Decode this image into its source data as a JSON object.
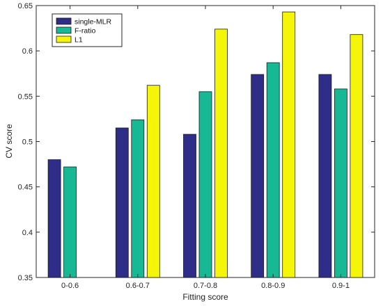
{
  "chart_data": {
    "type": "bar",
    "title": "",
    "xlabel": "Fitting score",
    "ylabel": "CV score",
    "categories": [
      "0-0.6",
      "0.6-0.7",
      "0.7-0.8",
      "0.8-0.9",
      "0.9-1"
    ],
    "series": [
      {
        "name": "single-MLR",
        "color": "#2e2d88",
        "values": [
          0.48,
          0.515,
          0.508,
          0.574,
          0.574
        ]
      },
      {
        "name": "F-ratio",
        "color": "#17b894",
        "values": [
          0.472,
          0.524,
          0.555,
          0.587,
          0.558
        ]
      },
      {
        "name": "L1",
        "color": "#f5f50a",
        "values": [
          0.35,
          0.562,
          0.624,
          0.643,
          0.618
        ]
      }
    ],
    "ylim": [
      0.35,
      0.65
    ],
    "yticks": [
      "0.35",
      "0.4",
      "0.45",
      "0.5",
      "0.55",
      "0.6",
      "0.65"
    ],
    "grid": false,
    "legend_position": "top-left"
  }
}
